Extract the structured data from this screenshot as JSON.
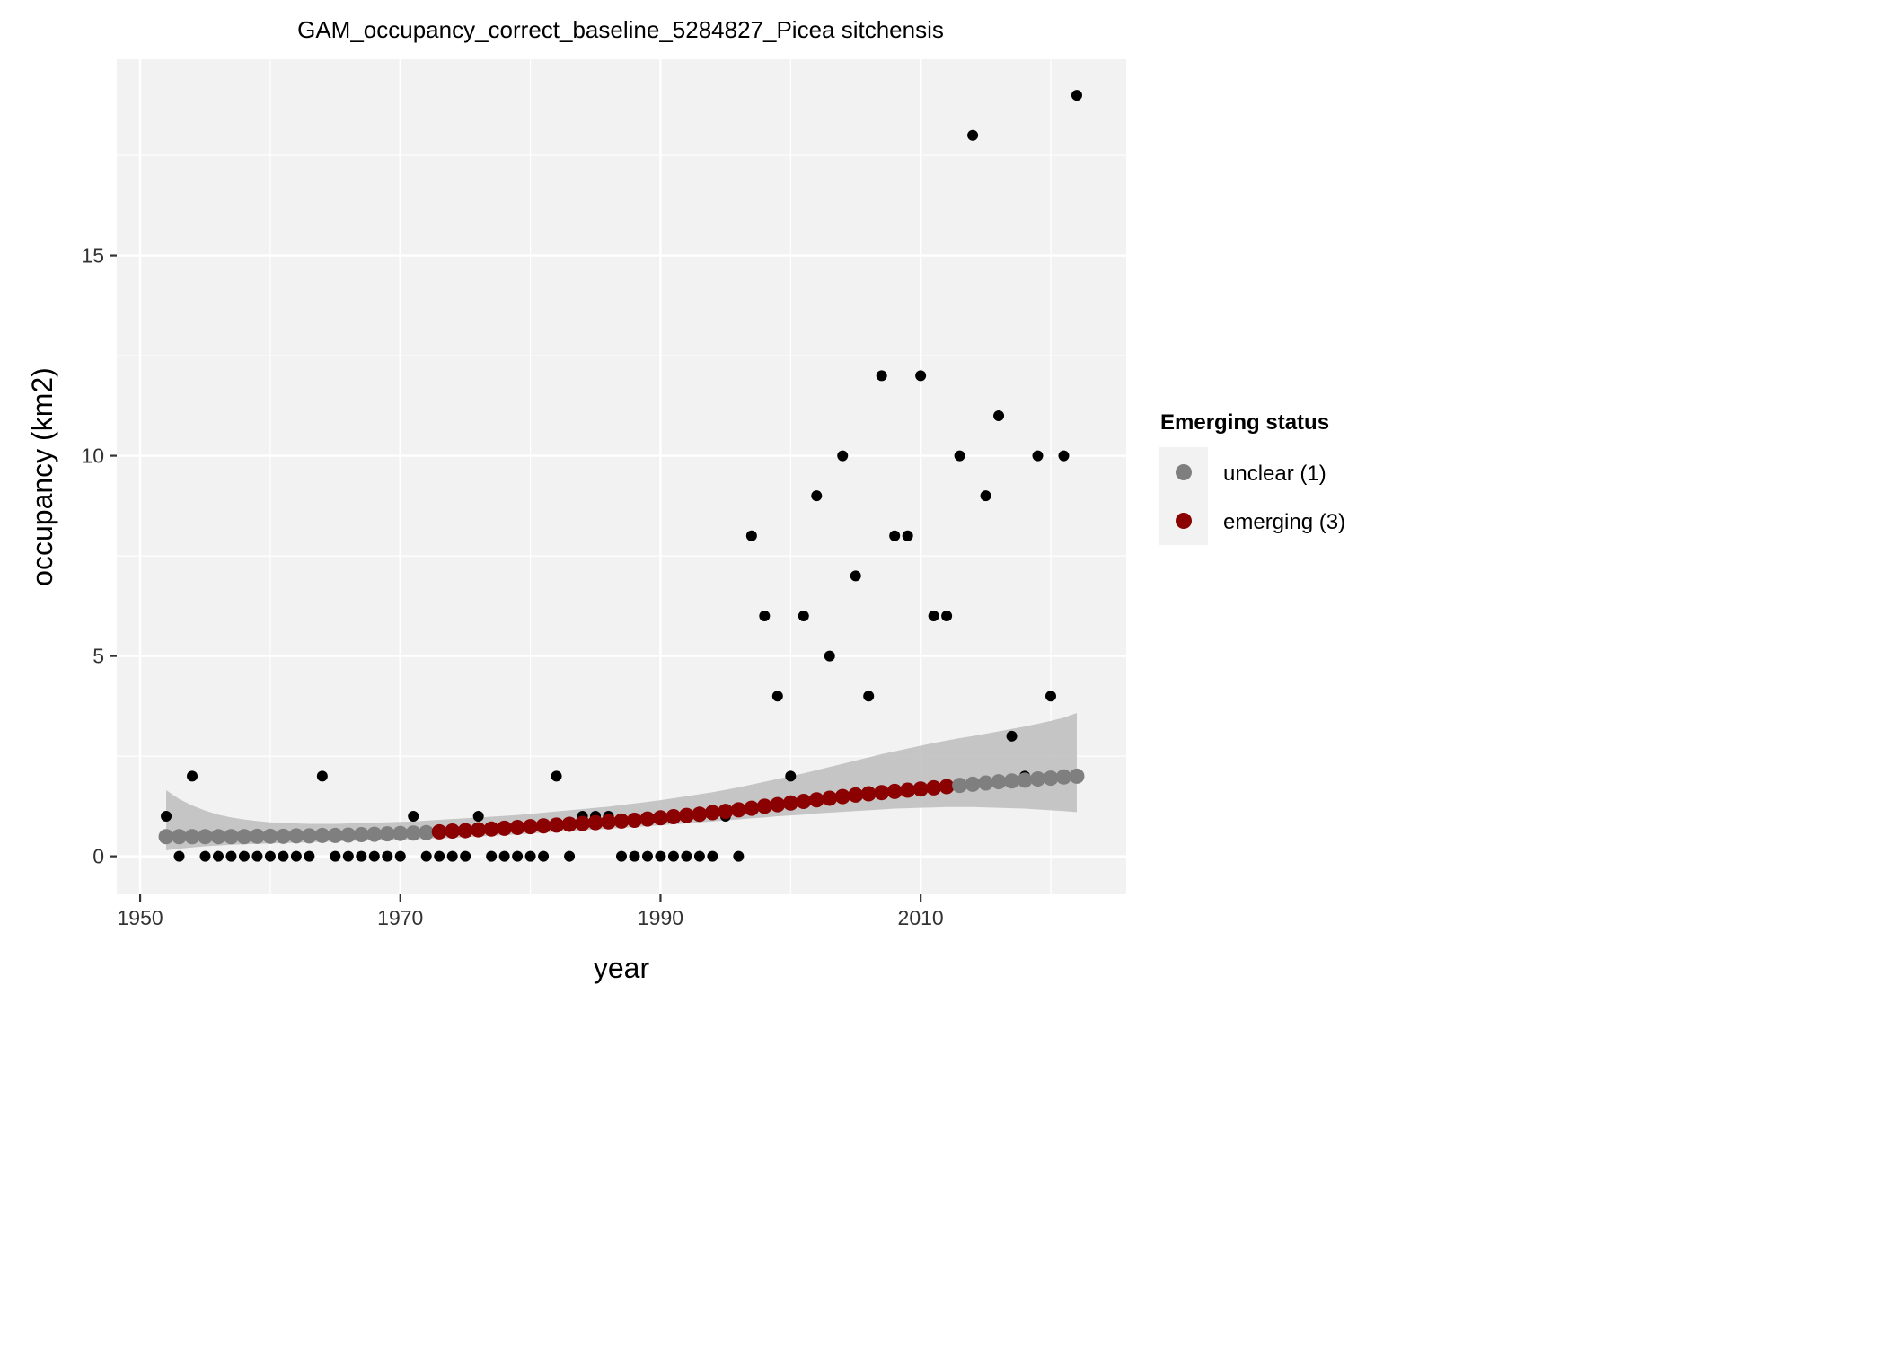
{
  "chart_data": {
    "type": "scatter",
    "title": "GAM_occupancy_correct_baseline_5284827_Picea sitchensis",
    "xlabel": "year",
    "ylabel": "occupancy (km2)",
    "xlim": [
      1948.2,
      2025.8
    ],
    "ylim": [
      -0.95,
      19.9
    ],
    "x_ticks": [
      1950,
      1970,
      1990,
      2010
    ],
    "x_minor_ticks": [
      1960,
      1980,
      2000,
      2020
    ],
    "y_ticks": [
      0,
      5,
      10,
      15
    ],
    "y_minor_ticks": [
      2.5,
      7.5,
      12.5,
      17.5
    ],
    "x_tick_labels": [
      "1950",
      "1970",
      "1990",
      "2010"
    ],
    "y_tick_labels": [
      "0",
      "5",
      "10",
      "15"
    ],
    "grid": true,
    "colors": {
      "panel": "#f2f2f2",
      "grid": "#ffffff",
      "observed": "#000000",
      "ribbon": "#bdbdbd",
      "unclear": "#7f7f7f",
      "emerging": "#8b0000"
    },
    "observed": {
      "x": [
        1952,
        1953,
        1954,
        1955,
        1956,
        1957,
        1958,
        1959,
        1960,
        1961,
        1962,
        1963,
        1964,
        1965,
        1966,
        1967,
        1968,
        1969,
        1970,
        1971,
        1972,
        1973,
        1974,
        1975,
        1976,
        1977,
        1978,
        1979,
        1980,
        1981,
        1982,
        1983,
        1984,
        1985,
        1986,
        1987,
        1988,
        1989,
        1990,
        1991,
        1992,
        1993,
        1994,
        1995,
        1996,
        1997,
        1998,
        1999,
        2000,
        2001,
        2002,
        2003,
        2004,
        2005,
        2006,
        2007,
        2008,
        2009,
        2010,
        2011,
        2012,
        2013,
        2014,
        2015,
        2016,
        2017,
        2018,
        2019,
        2020,
        2021,
        2022
      ],
      "y": [
        1,
        0,
        2,
        0,
        0,
        0,
        0,
        0,
        0,
        0,
        0,
        0,
        2,
        0,
        0,
        0,
        0,
        0,
        0,
        1,
        0,
        0,
        0,
        0,
        1,
        0,
        0,
        0,
        0,
        0,
        2,
        0,
        1,
        1,
        1,
        0,
        0,
        0,
        0,
        0,
        0,
        0,
        0,
        1,
        0,
        8,
        6,
        4,
        2,
        6,
        9,
        5,
        10,
        7,
        4,
        12,
        8,
        8,
        12,
        6,
        6,
        10,
        18,
        9,
        11,
        3,
        2,
        10,
        4,
        10,
        19
      ]
    },
    "fit": {
      "x": [
        1952,
        1953,
        1954,
        1955,
        1956,
        1957,
        1958,
        1959,
        1960,
        1961,
        1962,
        1963,
        1964,
        1965,
        1966,
        1967,
        1968,
        1969,
        1970,
        1971,
        1972,
        1973,
        1974,
        1975,
        1976,
        1977,
        1978,
        1979,
        1980,
        1981,
        1982,
        1983,
        1984,
        1985,
        1986,
        1987,
        1988,
        1989,
        1990,
        1991,
        1992,
        1993,
        1994,
        1995,
        1996,
        1997,
        1998,
        1999,
        2000,
        2001,
        2002,
        2003,
        2004,
        2005,
        2006,
        2007,
        2008,
        2009,
        2010,
        2011,
        2012,
        2013,
        2014,
        2015,
        2016,
        2017,
        2018,
        2019,
        2020,
        2021,
        2022
      ],
      "y": [
        0.49,
        0.49,
        0.49,
        0.49,
        0.49,
        0.49,
        0.49,
        0.5,
        0.5,
        0.5,
        0.51,
        0.51,
        0.52,
        0.52,
        0.53,
        0.54,
        0.55,
        0.56,
        0.57,
        0.58,
        0.59,
        0.61,
        0.63,
        0.64,
        0.66,
        0.68,
        0.7,
        0.72,
        0.74,
        0.76,
        0.78,
        0.8,
        0.82,
        0.84,
        0.86,
        0.88,
        0.9,
        0.93,
        0.96,
        0.99,
        1.02,
        1.05,
        1.09,
        1.12,
        1.16,
        1.2,
        1.25,
        1.29,
        1.33,
        1.37,
        1.41,
        1.45,
        1.49,
        1.53,
        1.56,
        1.59,
        1.62,
        1.65,
        1.68,
        1.71,
        1.74,
        1.77,
        1.8,
        1.83,
        1.86,
        1.88,
        1.9,
        1.93,
        1.95,
        1.98,
        2.0
      ],
      "lower": [
        0.15,
        0.19,
        0.22,
        0.25,
        0.27,
        0.29,
        0.3,
        0.31,
        0.32,
        0.33,
        0.34,
        0.35,
        0.36,
        0.37,
        0.38,
        0.39,
        0.4,
        0.41,
        0.42,
        0.43,
        0.44,
        0.45,
        0.46,
        0.48,
        0.5,
        0.51,
        0.53,
        0.55,
        0.57,
        0.59,
        0.61,
        0.63,
        0.65,
        0.67,
        0.69,
        0.71,
        0.73,
        0.75,
        0.78,
        0.8,
        0.82,
        0.85,
        0.87,
        0.9,
        0.92,
        0.95,
        0.97,
        1.0,
        1.02,
        1.04,
        1.07,
        1.09,
        1.11,
        1.13,
        1.15,
        1.17,
        1.19,
        1.2,
        1.21,
        1.22,
        1.23,
        1.23,
        1.23,
        1.22,
        1.21,
        1.2,
        1.19,
        1.17,
        1.15,
        1.13,
        1.1
      ],
      "upper": [
        1.65,
        1.43,
        1.27,
        1.14,
        1.04,
        0.97,
        0.92,
        0.88,
        0.85,
        0.83,
        0.82,
        0.81,
        0.81,
        0.81,
        0.82,
        0.83,
        0.84,
        0.85,
        0.86,
        0.87,
        0.89,
        0.91,
        0.93,
        0.95,
        0.97,
        0.99,
        1.01,
        1.03,
        1.06,
        1.09,
        1.12,
        1.15,
        1.18,
        1.21,
        1.24,
        1.28,
        1.32,
        1.36,
        1.4,
        1.45,
        1.5,
        1.55,
        1.6,
        1.66,
        1.72,
        1.79,
        1.86,
        1.93,
        2.0,
        2.07,
        2.15,
        2.23,
        2.31,
        2.39,
        2.47,
        2.55,
        2.62,
        2.69,
        2.76,
        2.83,
        2.89,
        2.95,
        3.0,
        3.06,
        3.12,
        3.18,
        3.24,
        3.31,
        3.38,
        3.46,
        3.58
      ],
      "status": [
        "unclear",
        "unclear",
        "unclear",
        "unclear",
        "unclear",
        "unclear",
        "unclear",
        "unclear",
        "unclear",
        "unclear",
        "unclear",
        "unclear",
        "unclear",
        "unclear",
        "unclear",
        "unclear",
        "unclear",
        "unclear",
        "unclear",
        "unclear",
        "unclear",
        "emerging",
        "emerging",
        "emerging",
        "emerging",
        "emerging",
        "emerging",
        "emerging",
        "emerging",
        "emerging",
        "emerging",
        "emerging",
        "emerging",
        "emerging",
        "emerging",
        "emerging",
        "emerging",
        "emerging",
        "emerging",
        "emerging",
        "emerging",
        "emerging",
        "emerging",
        "emerging",
        "emerging",
        "emerging",
        "emerging",
        "emerging",
        "emerging",
        "emerging",
        "emerging",
        "emerging",
        "emerging",
        "emerging",
        "emerging",
        "emerging",
        "emerging",
        "emerging",
        "emerging",
        "emerging",
        "emerging",
        "unclear",
        "unclear",
        "unclear",
        "unclear",
        "unclear",
        "unclear",
        "unclear",
        "unclear",
        "unclear",
        "unclear"
      ]
    },
    "legend": {
      "title": "Emerging status",
      "position": "right",
      "entries": [
        {
          "key": "unclear",
          "label": "unclear (1)",
          "color": "#7f7f7f"
        },
        {
          "key": "emerging",
          "label": "emerging (3)",
          "color": "#8b0000"
        }
      ]
    }
  }
}
